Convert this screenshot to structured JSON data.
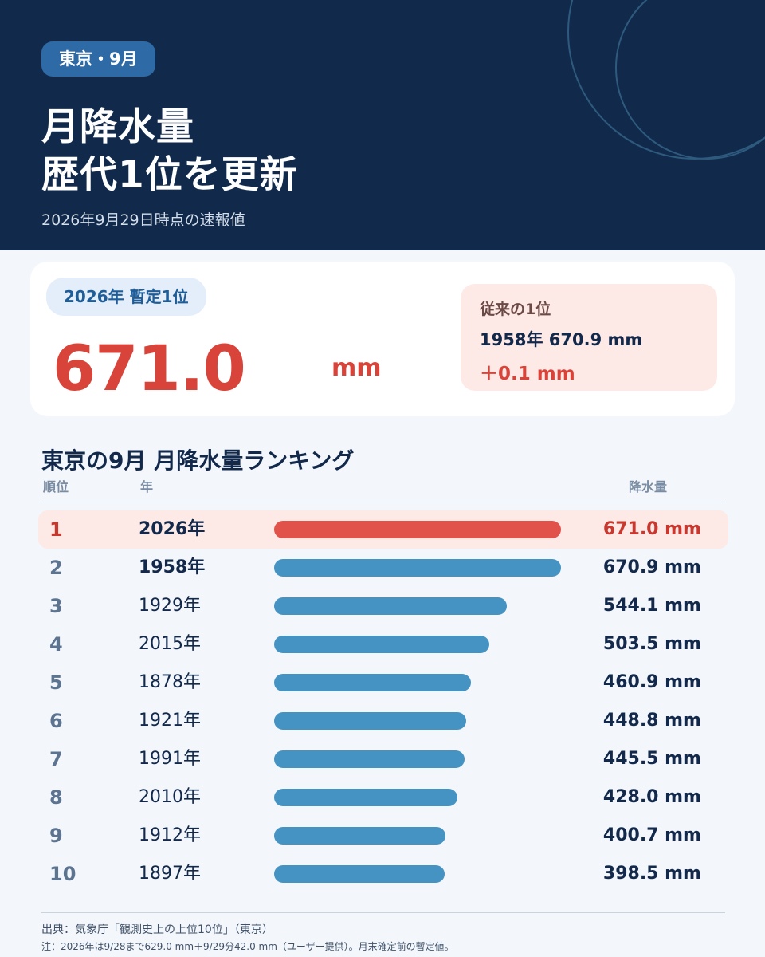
{
  "header": {
    "badge": "東京・9月",
    "title_line1": "月降水量",
    "title_line2": "歴代1位を更新",
    "subtitle": "2026年9月29日時点の速報値"
  },
  "highlight_card": {
    "pill": "2026年 暫定1位",
    "value": "671.0",
    "unit": "mm",
    "previous_label": "従来の1位",
    "previous_value": "1958年 670.9 mm",
    "difference": "＋0.1 mm"
  },
  "chart_data": {
    "type": "bar",
    "title": "東京の9月 月降水量ランキング",
    "columns": {
      "rank": "順位",
      "year": "年",
      "value": "降水量"
    },
    "unit": "mm",
    "xlim": [
      0,
      671.0
    ],
    "rows": [
      {
        "rank": "1",
        "year": "2026年",
        "value": 671.0,
        "value_label": "671.0 mm",
        "highlight": true,
        "bold": true
      },
      {
        "rank": "2",
        "year": "1958年",
        "value": 670.9,
        "value_label": "670.9 mm",
        "highlight": false,
        "bold": true
      },
      {
        "rank": "3",
        "year": "1929年",
        "value": 544.1,
        "value_label": "544.1 mm",
        "highlight": false,
        "bold": false
      },
      {
        "rank": "4",
        "year": "2015年",
        "value": 503.5,
        "value_label": "503.5 mm",
        "highlight": false,
        "bold": false
      },
      {
        "rank": "5",
        "year": "1878年",
        "value": 460.9,
        "value_label": "460.9 mm",
        "highlight": false,
        "bold": false
      },
      {
        "rank": "6",
        "year": "1921年",
        "value": 448.8,
        "value_label": "448.8 mm",
        "highlight": false,
        "bold": false
      },
      {
        "rank": "7",
        "year": "1991年",
        "value": 445.5,
        "value_label": "445.5 mm",
        "highlight": false,
        "bold": false
      },
      {
        "rank": "8",
        "year": "2010年",
        "value": 428.0,
        "value_label": "428.0 mm",
        "highlight": false,
        "bold": false
      },
      {
        "rank": "9",
        "year": "1912年",
        "value": 400.7,
        "value_label": "400.7 mm",
        "highlight": false,
        "bold": false
      },
      {
        "rank": "10",
        "year": "1897年",
        "value": 398.5,
        "value_label": "398.5 mm",
        "highlight": false,
        "bold": false
      }
    ],
    "colors": {
      "highlight_bar": "#e0524a",
      "bar": "#4593c3",
      "highlight_row": "#fde9e6"
    }
  },
  "footer": {
    "source": "出典：気象庁「観測史上の上位10位」（東京）",
    "note": "注：2026年は9/28まで629.0 mm＋9/29分42.0 mm（ユーザー提供）。月末確定前の暫定値。"
  }
}
